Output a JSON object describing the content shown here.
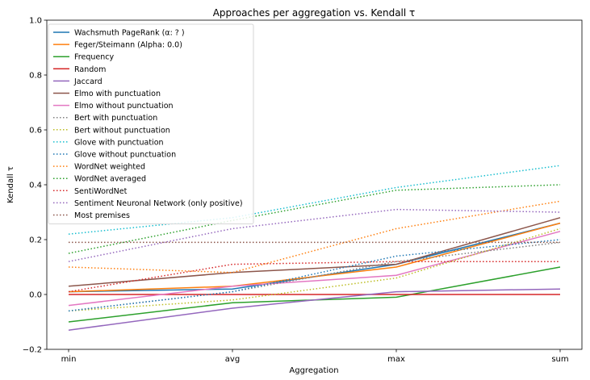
{
  "chart_data": {
    "type": "line",
    "title": "Approaches per aggregation vs. Kendall τ",
    "xlabel": "Aggregation",
    "ylabel": "Kendall τ",
    "categories": [
      "min",
      "avg",
      "max",
      "sum"
    ],
    "ylim": [
      -0.2,
      1.0
    ],
    "yticks": [
      "−0.2",
      "0.0",
      "0.2",
      "0.4",
      "0.6",
      "0.8",
      "1.0"
    ],
    "ytick_values": [
      -0.2,
      0.0,
      0.2,
      0.4,
      0.6,
      0.8,
      1.0
    ],
    "grid": false,
    "legend_position": "top-left",
    "series": [
      {
        "name": "Wachsmuth PageRank (α: ? )",
        "color": "#1f77b4",
        "style": "solid",
        "values": [
          0.01,
          0.02,
          0.11,
          0.26
        ]
      },
      {
        "name": "Feger/Steimann (Alpha: 0.0)",
        "color": "#ff7f0e",
        "style": "solid",
        "values": [
          0.01,
          0.03,
          0.1,
          0.26
        ]
      },
      {
        "name": "Frequency",
        "color": "#2ca02c",
        "style": "solid",
        "values": [
          -0.1,
          -0.03,
          -0.01,
          0.1
        ]
      },
      {
        "name": "Random",
        "color": "#d62728",
        "style": "solid",
        "values": [
          0.0,
          0.0,
          0.0,
          0.0
        ]
      },
      {
        "name": "Jaccard",
        "color": "#9467bd",
        "style": "solid",
        "values": [
          -0.13,
          -0.05,
          0.01,
          0.02
        ]
      },
      {
        "name": "Elmo with punctuation",
        "color": "#8c564b",
        "style": "solid",
        "values": [
          0.03,
          0.08,
          0.11,
          0.28
        ]
      },
      {
        "name": "Elmo without punctuation",
        "color": "#e377c2",
        "style": "solid",
        "values": [
          -0.04,
          0.03,
          0.07,
          0.23
        ]
      },
      {
        "name": "Bert with punctuation",
        "color": "#7f7f7f",
        "style": "dotted",
        "values": [
          -0.06,
          0.01,
          0.12,
          0.19
        ]
      },
      {
        "name": "Bert without punctuation",
        "color": "#bcbd22",
        "style": "dotted",
        "values": [
          -0.06,
          -0.02,
          0.06,
          0.24
        ]
      },
      {
        "name": "Glove with punctuation",
        "color": "#17becf",
        "style": "dotted",
        "values": [
          0.22,
          0.28,
          0.39,
          0.47
        ]
      },
      {
        "name": "Glove without punctuation",
        "color": "#1f77b4",
        "style": "dotted",
        "values": [
          -0.06,
          0.01,
          0.14,
          0.2
        ]
      },
      {
        "name": "WordNet weighted",
        "color": "#ff7f0e",
        "style": "dotted",
        "values": [
          0.1,
          0.08,
          0.24,
          0.34
        ]
      },
      {
        "name": "WordNet averaged",
        "color": "#2ca02c",
        "style": "dotted",
        "values": [
          0.15,
          0.27,
          0.38,
          0.4
        ]
      },
      {
        "name": "SentiWordNet",
        "color": "#d62728",
        "style": "dotted",
        "values": [
          0.01,
          0.11,
          0.12,
          0.12
        ]
      },
      {
        "name": "Sentiment Neuronal Network (only positive)",
        "color": "#9467bd",
        "style": "dotted",
        "values": [
          0.12,
          0.24,
          0.31,
          0.3
        ]
      },
      {
        "name": "Most premises",
        "color": "#8c564b",
        "style": "dotted",
        "values": [
          0.19,
          0.19,
          0.19,
          0.19
        ]
      }
    ]
  }
}
